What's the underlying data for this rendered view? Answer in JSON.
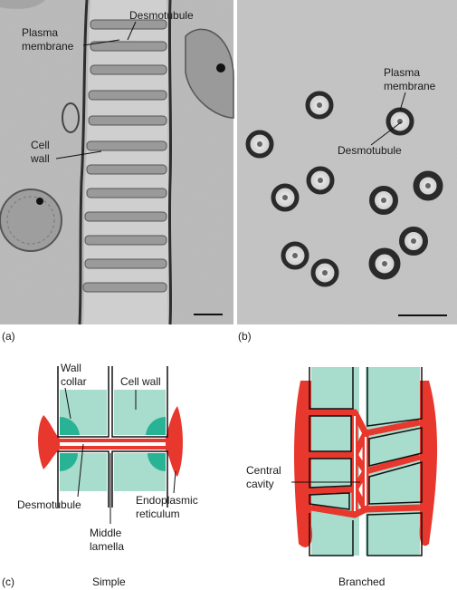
{
  "panel_a": {
    "letter": "(a)",
    "labels": {
      "desmotubule": "Desmotubule",
      "plasma_membrane_line1": "Plasma",
      "plasma_membrane_line2": "membrane",
      "cell_wall_line1": "Cell",
      "cell_wall_line2": "wall"
    }
  },
  "panel_b": {
    "letter": "(b)",
    "labels": {
      "plasma_membrane_line1": "Plasma",
      "plasma_membrane_line2": "membrane",
      "desmotubule": "Desmotubule"
    }
  },
  "panel_c": {
    "letter": "(c)",
    "simple": {
      "caption": "Simple",
      "labels": {
        "wall_collar_line1": "Wall",
        "wall_collar_line2": "collar",
        "cell_wall": "Cell wall",
        "desmotubule": "Desmotubule",
        "endoplasmic_line1": "Endoplasmic",
        "endoplasmic_line2": "reticulum",
        "middle_line1": "Middle",
        "middle_line2": "lamella"
      }
    },
    "branched": {
      "caption": "Branched",
      "labels": {
        "central_line1": "Central",
        "central_line2": "cavity"
      }
    }
  },
  "colors": {
    "wall_fill": "#a8dccc",
    "er_red": "#e8372c",
    "collar_teal": "#27b394",
    "micrograph_gray": "#bdbdbd"
  }
}
